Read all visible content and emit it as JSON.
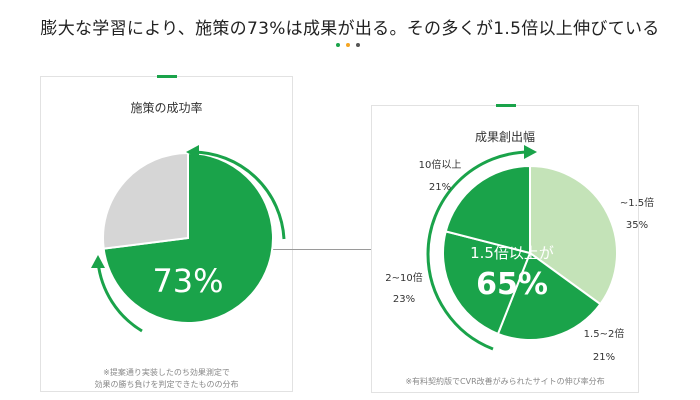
{
  "headline": "膨大な学習により、施策の73%は成果が出る。その多くが1.5倍以上伸びている",
  "colors": {
    "green": "#1aa34a",
    "gray": "#d6d6d6",
    "light_green": "#c4e3b8",
    "dot_green": "#1aa34a",
    "dot_orange": "#f5a623",
    "dot_dark": "#555555"
  },
  "left_panel": {
    "title": "施策の成功率",
    "big_label": "73%",
    "note_line1": "※提案通り実装したのち効果測定で",
    "note_line2": "効果の勝ち負けを判定できたものの分布"
  },
  "right_panel": {
    "title": "成果創出幅",
    "center_line1": "1.5倍以上が",
    "center_line2": "65%",
    "note": "※有料契約版でCVR改善がみられたサイトの伸び率分布"
  },
  "chart_data": [
    {
      "type": "pie",
      "title": "施策の成功率",
      "slices": [
        {
          "label": "",
          "value": 73,
          "color": "#1aa34a"
        },
        {
          "label": "",
          "value": 27,
          "color": "#d6d6d6"
        }
      ]
    },
    {
      "type": "pie",
      "title": "成果創出幅",
      "slices": [
        {
          "label": "~1.5倍",
          "value": 35,
          "percent_label": "35%",
          "color": "#c4e3b8"
        },
        {
          "label": "1.5~2倍",
          "value": 21,
          "percent_label": "21%",
          "color": "#1aa34a"
        },
        {
          "label": "2~10倍",
          "value": 23,
          "percent_label": "23%",
          "color": "#1aa34a"
        },
        {
          "label": "10倍以上",
          "value": 21,
          "percent_label": "21%",
          "color": "#1aa34a"
        }
      ]
    }
  ]
}
